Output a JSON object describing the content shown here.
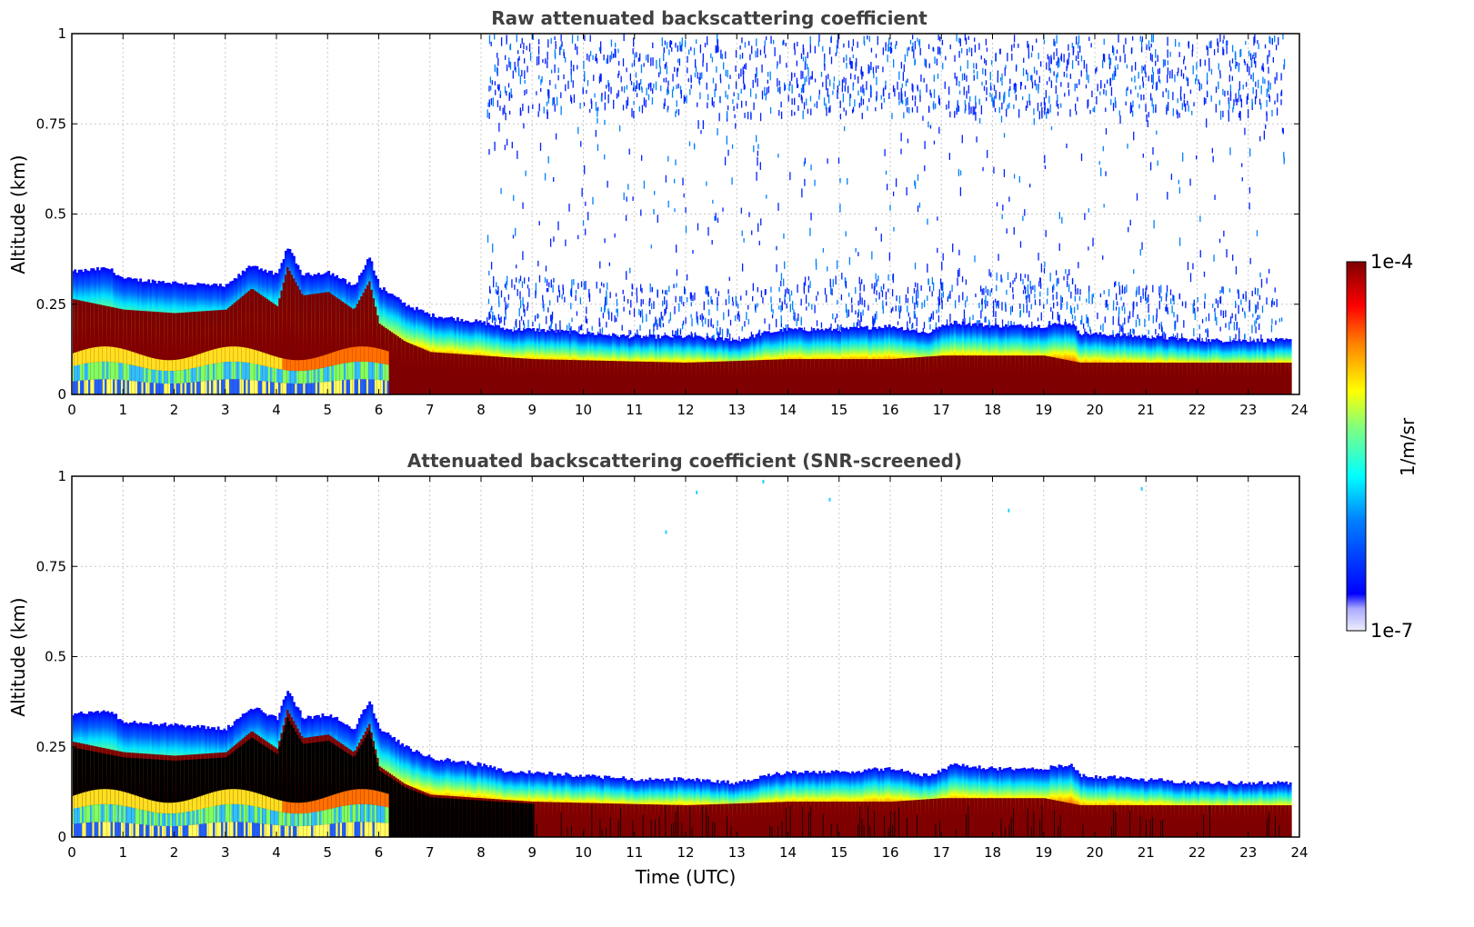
{
  "chart_data": [
    {
      "type": "heatmap",
      "title": "Raw attenuated backscattering coefficient",
      "xlabel": "",
      "ylabel": "Altitude (km)",
      "xlim": [
        0,
        24
      ],
      "ylim": [
        0,
        1
      ],
      "xticks": [
        "0",
        "1",
        "2",
        "3",
        "4",
        "5",
        "6",
        "7",
        "8",
        "9",
        "10",
        "11",
        "12",
        "13",
        "14",
        "15",
        "16",
        "17",
        "18",
        "19",
        "20",
        "21",
        "22",
        "23",
        "24"
      ],
      "yticks": [
        "0",
        "0.25",
        "0.5",
        "0.75",
        "1"
      ],
      "grid": true,
      "data_end_time": 23.8,
      "layer_top_km": [
        [
          0,
          0.34
        ],
        [
          0.7,
          0.35
        ],
        [
          1,
          0.32
        ],
        [
          2,
          0.31
        ],
        [
          3,
          0.3
        ],
        [
          3.5,
          0.36
        ],
        [
          4,
          0.33
        ],
        [
          4.2,
          0.41
        ],
        [
          4.5,
          0.33
        ],
        [
          5,
          0.34
        ],
        [
          5.5,
          0.3
        ],
        [
          5.8,
          0.38
        ],
        [
          6,
          0.3
        ],
        [
          6.5,
          0.25
        ],
        [
          7,
          0.22
        ],
        [
          8,
          0.2
        ],
        [
          8.5,
          0.18
        ],
        [
          9,
          0.18
        ],
        [
          10,
          0.17
        ],
        [
          11,
          0.16
        ],
        [
          12,
          0.16
        ],
        [
          13,
          0.15
        ],
        [
          13.5,
          0.17
        ],
        [
          14,
          0.18
        ],
        [
          15,
          0.18
        ],
        [
          16,
          0.19
        ],
        [
          16.7,
          0.17
        ],
        [
          17.2,
          0.2
        ],
        [
          18,
          0.19
        ],
        [
          19,
          0.19
        ],
        [
          19.5,
          0.2
        ],
        [
          19.7,
          0.17
        ],
        [
          21,
          0.16
        ],
        [
          22,
          0.15
        ],
        [
          23,
          0.15
        ],
        [
          23.8,
          0.15
        ]
      ],
      "saturated_top_km": [
        [
          0,
          0.27
        ],
        [
          1,
          0.24
        ],
        [
          2,
          0.23
        ],
        [
          3,
          0.24
        ],
        [
          3.5,
          0.3
        ],
        [
          4,
          0.25
        ],
        [
          4.2,
          0.36
        ],
        [
          4.5,
          0.28
        ],
        [
          5,
          0.29
        ],
        [
          5.5,
          0.24
        ],
        [
          5.8,
          0.32
        ],
        [
          6,
          0.2
        ],
        [
          6.5,
          0.15
        ],
        [
          7,
          0.12
        ],
        [
          8,
          0.11
        ],
        [
          9,
          0.1
        ],
        [
          12,
          0.09
        ],
        [
          14,
          0.1
        ],
        [
          16,
          0.1
        ],
        [
          17,
          0.11
        ],
        [
          19,
          0.11
        ],
        [
          19.7,
          0.09
        ],
        [
          21,
          0.09
        ],
        [
          23.8,
          0.09
        ]
      ],
      "noise_start_time": 8.1
    },
    {
      "type": "heatmap",
      "title": "Attenuated backscattering coefficient (SNR-screened)",
      "xlabel": "Time (UTC)",
      "ylabel": "Altitude (km)",
      "xlim": [
        0,
        24
      ],
      "ylim": [
        0,
        1
      ],
      "xticks": [
        "0",
        "1",
        "2",
        "3",
        "4",
        "5",
        "6",
        "7",
        "8",
        "9",
        "10",
        "11",
        "12",
        "13",
        "14",
        "15",
        "16",
        "17",
        "18",
        "19",
        "20",
        "21",
        "22",
        "23",
        "24"
      ],
      "yticks": [
        "0",
        "0.25",
        "0.5",
        "0.75",
        "1"
      ],
      "grid": true,
      "data_end_time": 23.8,
      "isolated_pixels": [
        [
          11.6,
          0.85
        ],
        [
          12.2,
          0.96
        ],
        [
          13.5,
          0.99
        ],
        [
          14.8,
          0.94
        ],
        [
          18.3,
          0.91
        ],
        [
          20.9,
          0.97
        ]
      ]
    }
  ],
  "colorbar": {
    "label": "1/m/sr",
    "max_label": "1e-4",
    "min_label": "1e-7",
    "colormap": "jet",
    "low_color": "#eeeeff",
    "high_color": "#7f0000"
  }
}
